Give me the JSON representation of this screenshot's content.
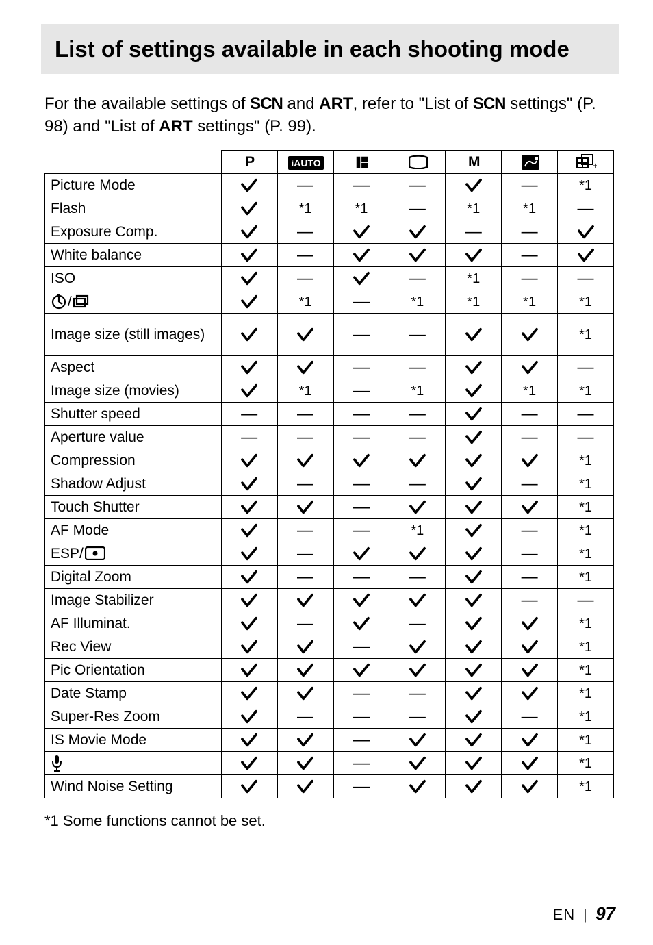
{
  "header": {
    "title": "List of settings available in each shooting mode"
  },
  "intro": {
    "part1": "For the available settings of ",
    "scn1": "SCN",
    "part2": " and ",
    "art1": "ART",
    "part3": ", refer to \"List of ",
    "scn2": "SCN",
    "part4": " settings\" (P. 98) and \"List of ",
    "art2": "ART",
    "part5": " settings\" (P. 99)."
  },
  "columns": {
    "p": "P",
    "m": "M"
  },
  "rows": [
    {
      "label": "Picture Mode",
      "cells": [
        "check",
        "dash",
        "dash",
        "dash",
        "check",
        "dash",
        "star1"
      ]
    },
    {
      "label": "Flash",
      "cells": [
        "check",
        "star1",
        "star1",
        "dash",
        "star1",
        "star1",
        "dash"
      ]
    },
    {
      "label": "Exposure Comp.",
      "cells": [
        "check",
        "dash",
        "check",
        "check",
        "dash",
        "dash",
        "check"
      ]
    },
    {
      "label": "White balance",
      "cells": [
        "check",
        "dash",
        "check",
        "check",
        "check",
        "dash",
        "check"
      ]
    },
    {
      "label": "ISO",
      "cells": [
        "check",
        "dash",
        "check",
        "dash",
        "star1",
        "dash",
        "dash"
      ]
    },
    {
      "label": "__DRIVE__",
      "cells": [
        "check",
        "star1",
        "dash",
        "star1",
        "star1",
        "star1",
        "star1"
      ]
    },
    {
      "label": "Image size (still images)",
      "cells": [
        "check",
        "check",
        "dash",
        "dash",
        "check",
        "check",
        "star1"
      ],
      "big": true
    },
    {
      "label": "Aspect",
      "cells": [
        "check",
        "check",
        "dash",
        "dash",
        "check",
        "check",
        "dash"
      ]
    },
    {
      "label": "Image size (movies)",
      "cells": [
        "check",
        "star1",
        "dash",
        "star1",
        "check",
        "star1",
        "star1"
      ]
    },
    {
      "label": "Shutter speed",
      "cells": [
        "dash",
        "dash",
        "dash",
        "dash",
        "check",
        "dash",
        "dash"
      ]
    },
    {
      "label": "Aperture value",
      "cells": [
        "dash",
        "dash",
        "dash",
        "dash",
        "check",
        "dash",
        "dash"
      ]
    },
    {
      "label": "Compression",
      "cells": [
        "check",
        "check",
        "check",
        "check",
        "check",
        "check",
        "star1"
      ]
    },
    {
      "label": "Shadow Adjust",
      "cells": [
        "check",
        "dash",
        "dash",
        "dash",
        "check",
        "dash",
        "star1"
      ]
    },
    {
      "label": "Touch Shutter",
      "cells": [
        "check",
        "check",
        "dash",
        "check",
        "check",
        "check",
        "star1"
      ]
    },
    {
      "label": "AF Mode",
      "cells": [
        "check",
        "dash",
        "dash",
        "star1",
        "check",
        "dash",
        "star1"
      ]
    },
    {
      "label": "__ESP__",
      "cells": [
        "check",
        "dash",
        "check",
        "check",
        "check",
        "dash",
        "star1"
      ]
    },
    {
      "label": "Digital Zoom",
      "cells": [
        "check",
        "dash",
        "dash",
        "dash",
        "check",
        "dash",
        "star1"
      ]
    },
    {
      "label": "Image Stabilizer",
      "cells": [
        "check",
        "check",
        "check",
        "check",
        "check",
        "dash",
        "dash"
      ]
    },
    {
      "label": "AF Illuminat.",
      "cells": [
        "check",
        "dash",
        "check",
        "dash",
        "check",
        "check",
        "star1"
      ]
    },
    {
      "label": "Rec View",
      "cells": [
        "check",
        "check",
        "dash",
        "check",
        "check",
        "check",
        "star1"
      ]
    },
    {
      "label": "Pic Orientation",
      "cells": [
        "check",
        "check",
        "check",
        "check",
        "check",
        "check",
        "star1"
      ]
    },
    {
      "label": "Date Stamp",
      "cells": [
        "check",
        "check",
        "dash",
        "dash",
        "check",
        "check",
        "star1"
      ]
    },
    {
      "label": "Super-Res Zoom",
      "cells": [
        "check",
        "dash",
        "dash",
        "dash",
        "check",
        "dash",
        "star1"
      ]
    },
    {
      "label": "IS Movie Mode",
      "cells": [
        "check",
        "check",
        "dash",
        "check",
        "check",
        "check",
        "star1"
      ]
    },
    {
      "label": "__MIC__",
      "cells": [
        "check",
        "check",
        "dash",
        "check",
        "check",
        "check",
        "star1"
      ]
    },
    {
      "label": "Wind Noise Setting",
      "cells": [
        "check",
        "check",
        "dash",
        "check",
        "check",
        "check",
        "star1"
      ]
    }
  ],
  "symbols": {
    "star1_text": "*1",
    "dash_text": "—",
    "esp_label": "ESP/"
  },
  "footnote": "*1  Some functions cannot be set.",
  "footer": {
    "en": "EN",
    "page": "97"
  },
  "colors": {
    "header_bg": "#e6e6e6",
    "text": "#000000",
    "bg": "#ffffff"
  }
}
